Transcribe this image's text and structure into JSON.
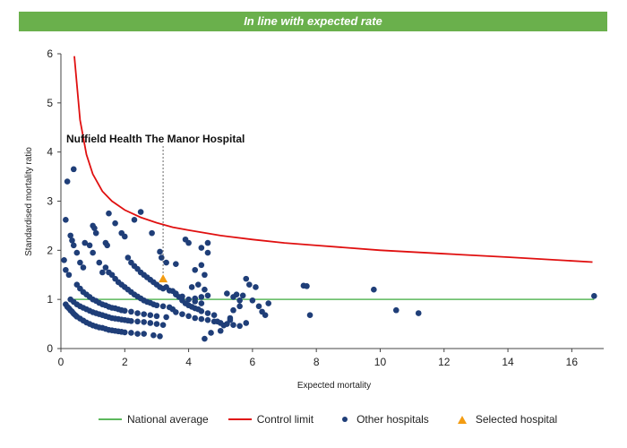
{
  "banner": {
    "text": "In line with expected rate",
    "color": "#6ab04c"
  },
  "chart_data": {
    "type": "scatter",
    "xlabel": "Expected mortality",
    "ylabel": "Standardised mortality ratio",
    "xlim": [
      0,
      17
    ],
    "ylim": [
      0,
      6
    ],
    "xticks": [
      0,
      2,
      4,
      6,
      8,
      10,
      12,
      14,
      16
    ],
    "yticks": [
      0,
      1,
      2,
      3,
      4,
      5,
      6
    ],
    "grid": false,
    "legend_position": "bottom",
    "national_average": {
      "name": "National average",
      "value": 1,
      "x_range": [
        0.4,
        16.7
      ],
      "color": "#5cb85c"
    },
    "control_limit": {
      "name": "Control limit",
      "color": "#e01010",
      "x": [
        0.42,
        0.6,
        0.8,
        1.0,
        1.3,
        1.6,
        2.0,
        2.5,
        3.0,
        3.5,
        4.0,
        5.0,
        6.0,
        7.0,
        8.0,
        10.0,
        12.0,
        14.0,
        16.65
      ],
      "y": [
        5.95,
        4.65,
        3.95,
        3.55,
        3.2,
        3.0,
        2.82,
        2.67,
        2.56,
        2.47,
        2.41,
        2.3,
        2.22,
        2.15,
        2.1,
        2.0,
        1.93,
        1.86,
        1.76
      ]
    },
    "selected_hospital": {
      "name": "Selected hospital",
      "label": "Nuffield Health The Manor Hospital",
      "x": 3.2,
      "y": 1.42,
      "color": "#f39c12"
    },
    "other_hospitals": {
      "name": "Other hospitals",
      "color": "#1f3e78",
      "points": [
        [
          0.15,
          0.9
        ],
        [
          0.2,
          0.85
        ],
        [
          0.25,
          0.82
        ],
        [
          0.3,
          0.78
        ],
        [
          0.35,
          0.75
        ],
        [
          0.4,
          0.71
        ],
        [
          0.45,
          0.68
        ],
        [
          0.5,
          0.65
        ],
        [
          0.6,
          0.61
        ],
        [
          0.7,
          0.57
        ],
        [
          0.8,
          0.53
        ],
        [
          0.9,
          0.5
        ],
        [
          1.0,
          0.47
        ],
        [
          1.1,
          0.45
        ],
        [
          1.2,
          0.43
        ],
        [
          1.3,
          0.42
        ],
        [
          1.4,
          0.4
        ],
        [
          1.5,
          0.38
        ],
        [
          1.6,
          0.37
        ],
        [
          1.7,
          0.36
        ],
        [
          1.8,
          0.35
        ],
        [
          1.9,
          0.34
        ],
        [
          2.0,
          0.33
        ],
        [
          2.2,
          0.32
        ],
        [
          2.4,
          0.3
        ],
        [
          2.6,
          0.3
        ],
        [
          2.9,
          0.27
        ],
        [
          3.1,
          0.25
        ],
        [
          0.3,
          1.0
        ],
        [
          0.4,
          0.95
        ],
        [
          0.5,
          0.9
        ],
        [
          0.6,
          0.86
        ],
        [
          0.7,
          0.83
        ],
        [
          0.8,
          0.8
        ],
        [
          0.9,
          0.77
        ],
        [
          1.0,
          0.74
        ],
        [
          1.1,
          0.72
        ],
        [
          1.2,
          0.7
        ],
        [
          1.3,
          0.68
        ],
        [
          1.4,
          0.66
        ],
        [
          1.5,
          0.64
        ],
        [
          1.6,
          0.62
        ],
        [
          1.7,
          0.61
        ],
        [
          1.8,
          0.6
        ],
        [
          1.9,
          0.59
        ],
        [
          2.0,
          0.58
        ],
        [
          2.1,
          0.57
        ],
        [
          2.2,
          0.56
        ],
        [
          2.4,
          0.55
        ],
        [
          2.6,
          0.54
        ],
        [
          2.8,
          0.52
        ],
        [
          3.0,
          0.5
        ],
        [
          3.2,
          0.48
        ],
        [
          0.5,
          1.3
        ],
        [
          0.6,
          1.22
        ],
        [
          0.7,
          1.15
        ],
        [
          0.8,
          1.1
        ],
        [
          0.9,
          1.05
        ],
        [
          1.0,
          1.0
        ],
        [
          1.1,
          0.97
        ],
        [
          1.2,
          0.93
        ],
        [
          1.3,
          0.9
        ],
        [
          1.4,
          0.88
        ],
        [
          1.5,
          0.85
        ],
        [
          1.6,
          0.83
        ],
        [
          1.7,
          0.82
        ],
        [
          1.8,
          0.8
        ],
        [
          1.9,
          0.78
        ],
        [
          2.0,
          0.77
        ],
        [
          2.2,
          0.75
        ],
        [
          2.4,
          0.72
        ],
        [
          2.6,
          0.7
        ],
        [
          2.8,
          0.68
        ],
        [
          3.0,
          0.66
        ],
        [
          3.3,
          0.64
        ],
        [
          1.4,
          1.65
        ],
        [
          1.5,
          1.55
        ],
        [
          1.6,
          1.5
        ],
        [
          1.7,
          1.42
        ],
        [
          1.8,
          1.35
        ],
        [
          1.9,
          1.3
        ],
        [
          2.0,
          1.25
        ],
        [
          2.1,
          1.2
        ],
        [
          2.2,
          1.15
        ],
        [
          2.3,
          1.1
        ],
        [
          2.4,
          1.06
        ],
        [
          2.5,
          1.02
        ],
        [
          2.6,
          0.98
        ],
        [
          2.7,
          0.95
        ],
        [
          2.8,
          0.93
        ],
        [
          2.9,
          0.9
        ],
        [
          3.0,
          0.88
        ],
        [
          3.2,
          0.86
        ],
        [
          3.4,
          0.84
        ],
        [
          2.1,
          1.85
        ],
        [
          2.2,
          1.75
        ],
        [
          2.3,
          1.68
        ],
        [
          2.4,
          1.62
        ],
        [
          2.5,
          1.55
        ],
        [
          2.6,
          1.5
        ],
        [
          2.7,
          1.45
        ],
        [
          2.8,
          1.4
        ],
        [
          2.9,
          1.35
        ],
        [
          3.0,
          1.3
        ],
        [
          3.1,
          1.25
        ],
        [
          3.2,
          1.22
        ],
        [
          3.4,
          1.18
        ],
        [
          3.6,
          1.12
        ],
        [
          3.8,
          1.06
        ],
        [
          4.0,
          1.0
        ],
        [
          4.2,
          0.96
        ],
        [
          4.4,
          0.92
        ],
        [
          3.3,
          1.25
        ],
        [
          3.5,
          1.17
        ],
        [
          3.6,
          1.1
        ],
        [
          3.7,
          1.05
        ],
        [
          3.8,
          0.98
        ],
        [
          3.9,
          0.92
        ],
        [
          4.0,
          0.88
        ],
        [
          4.1,
          0.85
        ],
        [
          4.2,
          0.82
        ],
        [
          4.3,
          0.8
        ],
        [
          4.4,
          0.76
        ],
        [
          4.6,
          0.72
        ],
        [
          4.8,
          0.68
        ],
        [
          3.5,
          0.8
        ],
        [
          3.6,
          0.74
        ],
        [
          3.8,
          0.7
        ],
        [
          4.0,
          0.66
        ],
        [
          4.2,
          0.62
        ],
        [
          4.4,
          0.6
        ],
        [
          4.6,
          0.58
        ],
        [
          4.8,
          0.55
        ],
        [
          5.0,
          0.52
        ],
        [
          5.2,
          0.5
        ],
        [
          5.4,
          0.48
        ],
        [
          5.6,
          0.46
        ],
        [
          4.2,
          1.02
        ],
        [
          4.4,
          1.05
        ],
        [
          4.6,
          1.08
        ],
        [
          4.1,
          1.25
        ],
        [
          4.3,
          1.3
        ],
        [
          4.5,
          1.2
        ],
        [
          4.2,
          1.6
        ],
        [
          4.4,
          1.7
        ],
        [
          4.5,
          1.5
        ],
        [
          4.6,
          1.95
        ],
        [
          0.1,
          1.8
        ],
        [
          0.15,
          1.6
        ],
        [
          0.25,
          1.5
        ],
        [
          0.3,
          2.3
        ],
        [
          0.35,
          2.2
        ],
        [
          0.4,
          2.1
        ],
        [
          0.5,
          1.95
        ],
        [
          0.6,
          1.75
        ],
        [
          0.7,
          1.65
        ],
        [
          0.75,
          2.15
        ],
        [
          0.9,
          2.1
        ],
        [
          1.0,
          1.95
        ],
        [
          1.0,
          2.5
        ],
        [
          1.05,
          2.45
        ],
        [
          1.1,
          2.35
        ],
        [
          1.2,
          1.75
        ],
        [
          1.3,
          1.55
        ],
        [
          1.4,
          2.15
        ],
        [
          1.45,
          2.1
        ],
        [
          1.5,
          2.75
        ],
        [
          1.7,
          2.55
        ],
        [
          1.9,
          2.35
        ],
        [
          2.0,
          2.28
        ],
        [
          2.3,
          2.62
        ],
        [
          2.5,
          2.78
        ],
        [
          2.85,
          2.35
        ],
        [
          3.1,
          1.97
        ],
        [
          3.15,
          1.85
        ],
        [
          3.3,
          1.75
        ],
        [
          3.6,
          1.72
        ],
        [
          3.9,
          2.22
        ],
        [
          4.0,
          2.15
        ],
        [
          4.4,
          2.05
        ],
        [
          4.6,
          2.15
        ],
        [
          0.2,
          3.4
        ],
        [
          0.4,
          3.65
        ],
        [
          0.15,
          2.62
        ],
        [
          5.2,
          1.12
        ],
        [
          5.4,
          1.05
        ],
        [
          5.5,
          1.1
        ],
        [
          5.6,
          0.98
        ],
        [
          5.7,
          1.08
        ],
        [
          5.8,
          1.42
        ],
        [
          5.9,
          1.3
        ],
        [
          6.1,
          1.25
        ],
        [
          6.0,
          0.98
        ],
        [
          6.2,
          0.86
        ],
        [
          6.3,
          0.75
        ],
        [
          6.4,
          0.68
        ],
        [
          6.5,
          0.92
        ],
        [
          5.4,
          0.78
        ],
        [
          5.6,
          0.86
        ],
        [
          5.8,
          0.52
        ],
        [
          5.3,
          0.62
        ],
        [
          5.1,
          0.47
        ],
        [
          4.5,
          0.2
        ],
        [
          4.7,
          0.32
        ],
        [
          5.0,
          0.36
        ],
        [
          4.9,
          0.55
        ],
        [
          5.3,
          0.58
        ],
        [
          7.6,
          1.28
        ],
        [
          7.7,
          1.27
        ],
        [
          7.8,
          0.68
        ],
        [
          9.8,
          1.2
        ],
        [
          10.5,
          0.78
        ],
        [
          11.2,
          0.72
        ],
        [
          16.7,
          1.07
        ]
      ]
    }
  },
  "legend": {
    "items": [
      {
        "label": "National average",
        "symbol": "line",
        "color": "#5cb85c"
      },
      {
        "label": "Control limit",
        "symbol": "line",
        "color": "#e01010"
      },
      {
        "label": "Other hospitals",
        "symbol": "dot",
        "color": "#1f3e78"
      },
      {
        "label": "Selected hospital",
        "symbol": "triangle",
        "color": "#f39c12"
      }
    ]
  }
}
